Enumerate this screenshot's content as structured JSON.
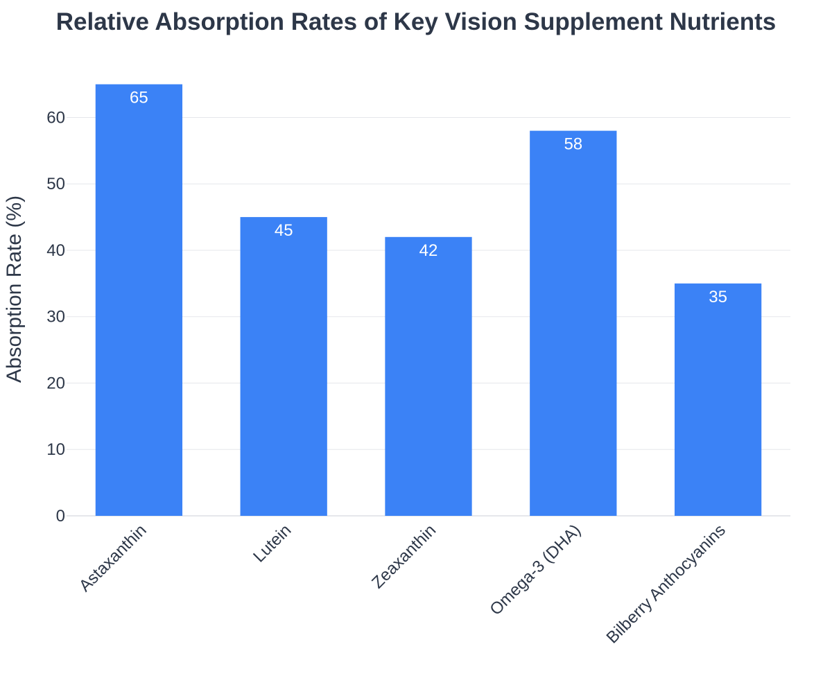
{
  "chart_data": {
    "type": "bar",
    "title": "Relative Absorption Rates of Key Vision Supplement Nutrients",
    "xlabel": "",
    "ylabel": "Absorption Rate (%)",
    "categories": [
      "Astaxanthin",
      "Lutein",
      "Zeaxanthin",
      "Omega-3 (DHA)",
      "Bilberry Anthocyanins"
    ],
    "values": [
      65,
      45,
      42,
      58,
      35
    ],
    "data_labels": [
      "65",
      "45",
      "42",
      "58",
      "35"
    ],
    "ylim": [
      0,
      68.4
    ],
    "yticks": [
      0,
      10,
      20,
      30,
      40,
      50,
      60
    ],
    "ytick_labels": [
      "0",
      "10",
      "20",
      "30",
      "40",
      "50",
      "60"
    ],
    "grid": true,
    "legend": "none",
    "colors": {
      "bar": "#3b82f6",
      "grid": "#e5e7eb",
      "text": "#2d3748",
      "label": "#ffffff"
    }
  }
}
